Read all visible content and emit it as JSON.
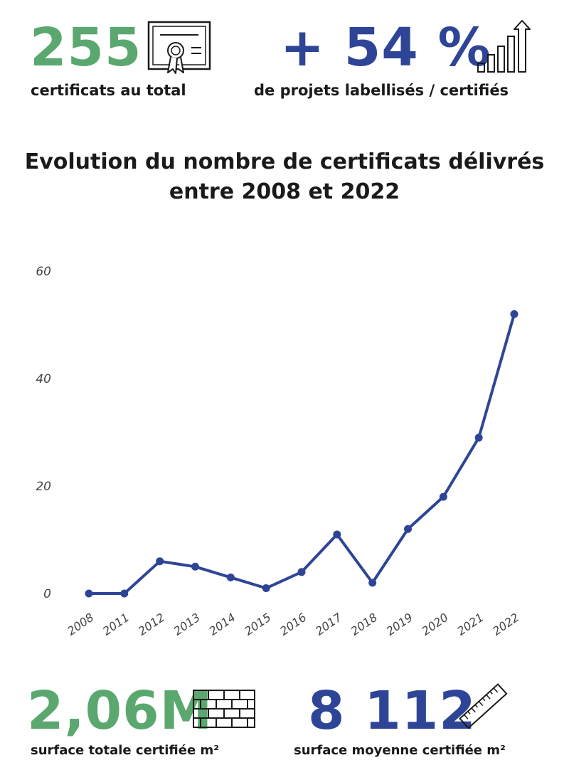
{
  "stats": {
    "total": {
      "value": "255",
      "label": "certificats au total",
      "icon": "certificate-icon",
      "color": "#5aa86f"
    },
    "growth": {
      "value": "+ 54 %",
      "label": "de projets labellisés / certifiés",
      "icon": "growth-bars-icon",
      "color": "#2e4597"
    },
    "surface_total": {
      "value": "2,06M",
      "label": "surface totale certifiée m²",
      "icon": "brick-wall-icon",
      "color": "#5aa86f"
    },
    "surface_avg": {
      "value": "8 112",
      "label": "surface moyenne certifiée m²",
      "icon": "ruler-icon",
      "color": "#2e4597"
    }
  },
  "chart_title": {
    "line1": "Evolution du nombre de certificats délivrés",
    "line2": "entre 2008 et 2022"
  },
  "chart_data": {
    "type": "line",
    "categories": [
      "2008",
      "2011",
      "2012",
      "2013",
      "2014",
      "2015",
      "2016",
      "2017",
      "2018",
      "2019",
      "2020",
      "2021",
      "2022"
    ],
    "values": [
      0,
      0,
      6,
      5,
      3,
      1,
      4,
      11,
      2,
      12,
      18,
      29,
      52
    ],
    "yticks": [
      0,
      20,
      40,
      60
    ],
    "ylim": [
      0,
      60
    ],
    "grid": false,
    "line_color": "#2e4597",
    "title": "Evolution du nombre de certificats délivrés entre 2008 et 2022"
  }
}
